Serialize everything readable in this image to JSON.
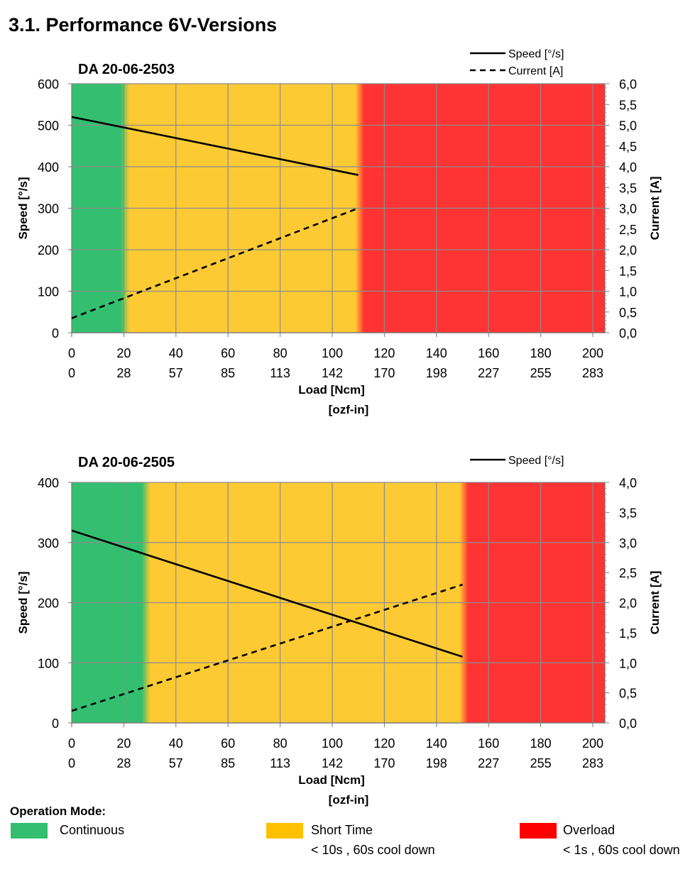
{
  "page": {
    "title": "3.1. Performance 6V-Versions"
  },
  "chart_data": [
    {
      "type": "line",
      "title": "DA 20-06-2503",
      "xlabel": "Load [Ncm]",
      "xlabel2": "[ozf-in]",
      "ylabel": "Speed  [°/s]",
      "y2label": "Current  [A]",
      "xlim": [
        0,
        205
      ],
      "ylim": [
        0,
        600
      ],
      "y2lim": [
        0,
        6
      ],
      "x_ticks": [
        "0",
        "20",
        "40",
        "60",
        "80",
        "100",
        "120",
        "140",
        "160",
        "180",
        "200"
      ],
      "x2_ticks": [
        "0",
        "28",
        "57",
        "85",
        "113",
        "142",
        "170",
        "198",
        "227",
        "255",
        "283"
      ],
      "y_ticks": [
        "0",
        "100",
        "200",
        "300",
        "400",
        "500",
        "600"
      ],
      "y2_ticks": [
        "0,0",
        "0,5",
        "1,0",
        "1,5",
        "2,0",
        "2,5",
        "3,0",
        "3,5",
        "4,0",
        "4,5",
        "5,0",
        "5,5",
        "6,0"
      ],
      "zones": [
        {
          "mode": "continuous",
          "from": 0,
          "to": 20
        },
        {
          "mode": "short-time",
          "from": 20,
          "to": 110
        },
        {
          "mode": "overload",
          "from": 110,
          "to": 205
        }
      ],
      "series": [
        {
          "name": "Speed [°/s]",
          "axis": "left",
          "style": "solid",
          "x": [
            0,
            110
          ],
          "y": [
            520,
            380
          ]
        },
        {
          "name": "Current [A]",
          "axis": "right",
          "style": "dashed",
          "x": [
            0,
            110
          ],
          "y": [
            0.35,
            3.0
          ]
        }
      ]
    },
    {
      "type": "line",
      "title": "DA 20-06-2505",
      "xlabel": "Load [Ncm]",
      "xlabel2": "[ozf-in]",
      "ylabel": "Speed  [°/s]",
      "y2label": "Current  [A]",
      "xlim": [
        0,
        205
      ],
      "ylim": [
        0,
        400
      ],
      "y2lim": [
        0,
        4
      ],
      "x_ticks": [
        "0",
        "20",
        "40",
        "60",
        "80",
        "100",
        "120",
        "140",
        "160",
        "180",
        "200"
      ],
      "x2_ticks": [
        "0",
        "28",
        "57",
        "85",
        "113",
        "142",
        "170",
        "198",
        "227",
        "255",
        "283"
      ],
      "y_ticks": [
        "0",
        "100",
        "200",
        "300",
        "400"
      ],
      "y2_ticks": [
        "0,0",
        "0,5",
        "1,0",
        "1,5",
        "2,0",
        "2,5",
        "3,0",
        "3,5",
        "4,0"
      ],
      "zones": [
        {
          "mode": "continuous",
          "from": 0,
          "to": 28
        },
        {
          "mode": "short-time",
          "from": 28,
          "to": 150
        },
        {
          "mode": "overload",
          "from": 150,
          "to": 205
        }
      ],
      "series": [
        {
          "name": "Speed [°/s]",
          "axis": "left",
          "style": "solid",
          "x": [
            0,
            150
          ],
          "y": [
            320,
            110
          ]
        },
        {
          "name": "",
          "axis": "right",
          "style": "dashed",
          "x": [
            0,
            150
          ],
          "y": [
            0.2,
            2.3
          ]
        }
      ]
    }
  ],
  "legend": {
    "title": "Operation Mode:",
    "items": [
      {
        "label": "Continuous",
        "note": "",
        "color": "#33bf6f"
      },
      {
        "label": "Short Time",
        "note": "< 10s , 60s cool down",
        "color": "#ffc000"
      },
      {
        "label": "Overload",
        "note": "< 1s , 60s cool down",
        "color": "#ff0000"
      }
    ]
  },
  "colors": {
    "continuous": "#33bf6f",
    "short_time": "#fdca34",
    "overload": "#fe3333",
    "grid": "#8c8c8c"
  }
}
